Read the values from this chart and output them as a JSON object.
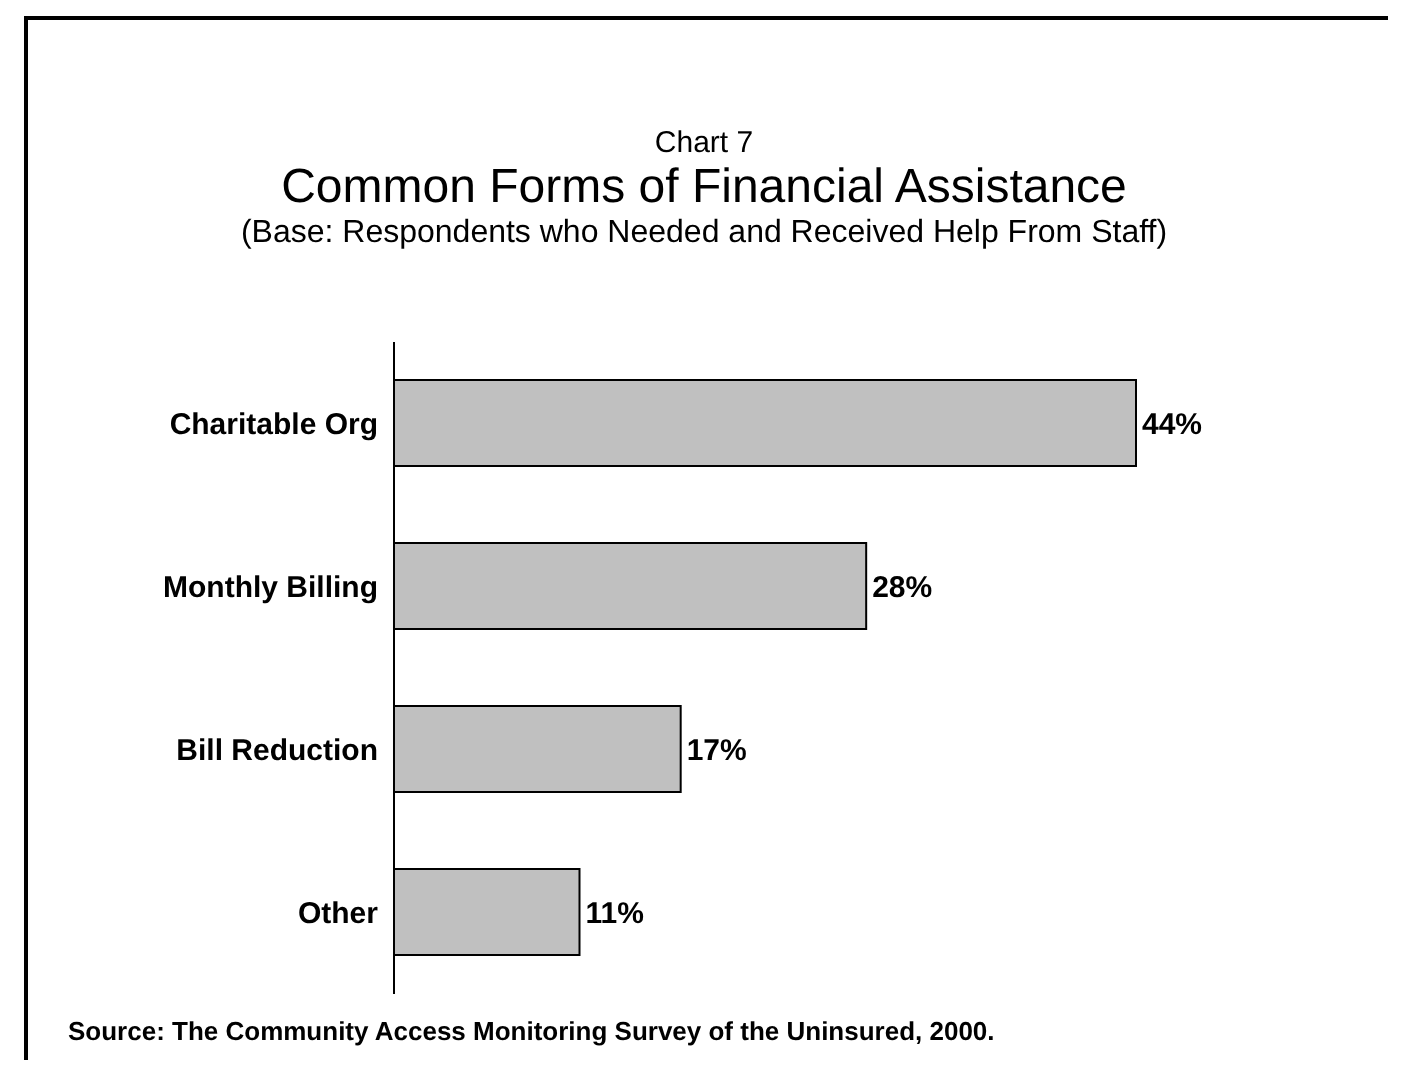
{
  "chart_data": {
    "type": "bar",
    "orientation": "horizontal",
    "title": "Common Forms of Financial Assistance",
    "subtitle": "(Base: Respondents who Needed and Received Help From Staff)",
    "annotations": [
      "Chart 7",
      "Source: The Community Access Monitoring Survey of the Uninsured, 2000."
    ],
    "categories": [
      "Charitable Org",
      "Monthly Billing",
      "Bill Reduction",
      "Other"
    ],
    "values": [
      44,
      28,
      17,
      11
    ],
    "value_labels": [
      "44%",
      "28%",
      "17%",
      "11%"
    ],
    "color": "#c0c0c0"
  }
}
